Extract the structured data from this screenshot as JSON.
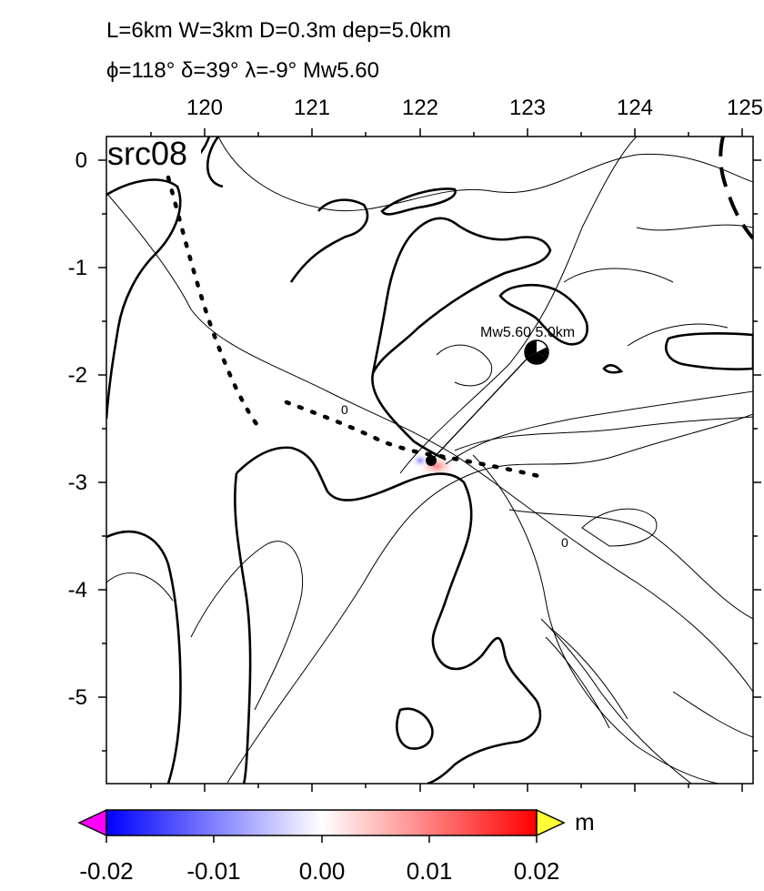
{
  "header": {
    "line1": "L=6km W=3km D=0.3m dep=5.0km",
    "line2": "ϕ=118° δ=39° λ=-9° Mw5.60"
  },
  "panel_label": "src08",
  "x_axis": {
    "ticks": [
      "120",
      "121",
      "122",
      "123",
      "124",
      "125"
    ]
  },
  "y_axis": {
    "ticks": [
      "0",
      "-1",
      "-2",
      "-3",
      "-4",
      "-5"
    ]
  },
  "annotations": {
    "contour_zero_a": "0",
    "contour_zero_b": "0",
    "source_label": "Mw5.60  5.0km"
  },
  "colorbar": {
    "unit": "m",
    "ticks": [
      "-0.02",
      "-0.01",
      "0.00",
      "0.01",
      "0.02"
    ],
    "colors": {
      "low_overflow": "#ff00ff",
      "min": "#0000ff",
      "mid": "#ffffff",
      "max": "#ff0000",
      "high_overflow": "#ffff33"
    }
  }
}
